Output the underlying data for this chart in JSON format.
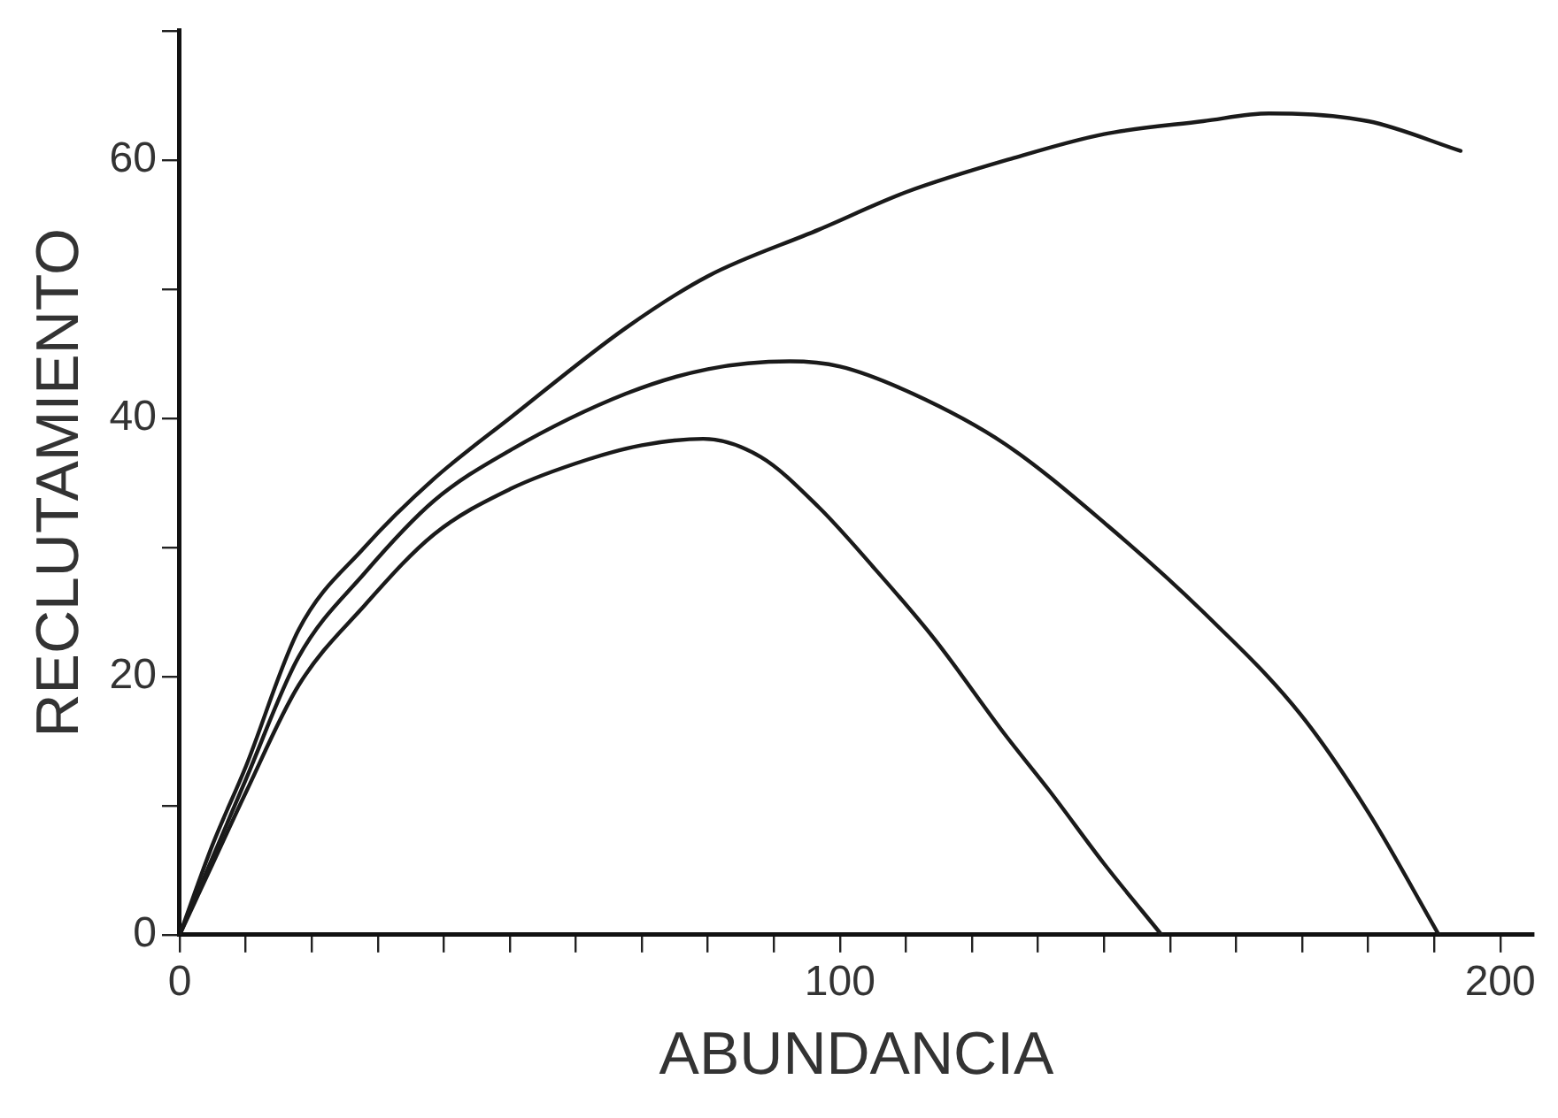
{
  "chart_data": {
    "type": "line",
    "xlabel": "ABUNDANCIA",
    "ylabel": "RECLUTAMIENTO",
    "xlim": [
      0,
      205
    ],
    "ylim": [
      0,
      70
    ],
    "xticks": [
      0,
      {
        "value": 10,
        "label": null
      },
      {
        "value": 20,
        "label": null
      },
      {
        "value": 30,
        "label": null
      },
      {
        "value": 40,
        "label": null
      },
      {
        "value": 50,
        "label": null
      },
      {
        "value": 60,
        "label": null
      },
      {
        "value": 70,
        "label": null
      },
      {
        "value": 80,
        "label": null
      },
      {
        "value": 90,
        "label": null
      },
      100,
      {
        "value": 110,
        "label": null
      },
      {
        "value": 120,
        "label": null
      },
      {
        "value": 130,
        "label": null
      },
      {
        "value": 140,
        "label": null
      },
      {
        "value": 150,
        "label": null
      },
      {
        "value": 160,
        "label": null
      },
      {
        "value": 170,
        "label": null
      },
      {
        "value": 180,
        "label": null
      },
      {
        "value": 190,
        "label": null
      },
      200
    ],
    "yticks": [
      0,
      {
        "value": 10,
        "label": null
      },
      20,
      {
        "value": 30,
        "label": null
      },
      40,
      {
        "value": 50,
        "label": null
      },
      60,
      {
        "value": 70,
        "label": null
      }
    ],
    "grid": false,
    "legend": false,
    "marker": "none",
    "line_style": "solid",
    "series": [
      {
        "color": "#1a1a1a",
        "x": [
          0,
          5,
          10,
          18,
          28,
          38.5,
          50,
          67.6,
          80,
          96.8,
          110,
          126,
          140,
          155,
          165,
          180,
          194
        ],
        "values": [
          0,
          7,
          13,
          23.6,
          30,
          35.3,
          40,
          47,
          51,
          54.6,
          57.5,
          60.1,
          62,
          63,
          63.6,
          63,
          60.7
        ]
      },
      {
        "color": "#1a1a1a",
        "x": [
          0,
          5,
          10,
          18,
          28,
          38.5,
          50,
          67.6,
          80,
          92.4,
          100,
          111,
          125,
          140.5,
          155,
          169.7,
          180,
          190.7
        ],
        "values": [
          0,
          6,
          12,
          21.5,
          28,
          33.6,
          37.5,
          41.9,
          43.8,
          44.4,
          44,
          41.9,
          38,
          31.7,
          25,
          17.1,
          9.5,
          0
        ]
      },
      {
        "color": "#1a1a1a",
        "x": [
          0,
          5,
          10,
          18,
          28,
          38.5,
          50,
          61.8,
          70,
          79.3,
          88,
          96.8,
          105,
          114.3,
          125,
          131.8,
          140,
          148.7
        ],
        "values": [
          0,
          5.5,
          11,
          19.3,
          25.5,
          31,
          34.5,
          36.8,
          37.9,
          38.4,
          37,
          33.1,
          28.5,
          22.9,
          15.5,
          11.1,
          5.5,
          0
        ]
      }
    ]
  }
}
